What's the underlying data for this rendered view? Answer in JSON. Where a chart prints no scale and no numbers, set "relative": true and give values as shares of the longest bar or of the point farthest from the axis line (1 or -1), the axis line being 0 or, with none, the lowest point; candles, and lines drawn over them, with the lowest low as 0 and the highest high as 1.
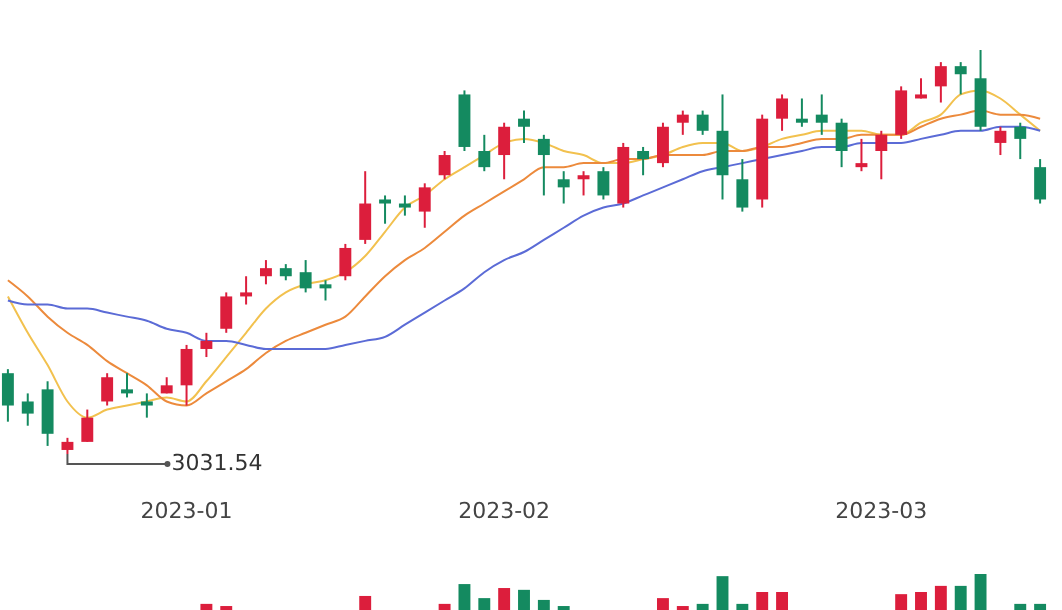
{
  "chart_data": [
    {
      "type": "candlestick",
      "relative": true,
      "categories": [
        null,
        null,
        null,
        null,
        null,
        null,
        null,
        null,
        null,
        "2023-01",
        null,
        null,
        null,
        null,
        null,
        null,
        null,
        null,
        null,
        null,
        null,
        null,
        null,
        null,
        null,
        "2023-02",
        null,
        null,
        null,
        null,
        null,
        null,
        null,
        null,
        null,
        null,
        null,
        null,
        null,
        null,
        null,
        null,
        null,
        null,
        "2023-03",
        null,
        null,
        null,
        null,
        null,
        null,
        null,
        null
      ],
      "ohlc": [
        [
          0.2,
          0.21,
          0.08,
          0.12
        ],
        [
          0.13,
          0.15,
          0.07,
          0.1
        ],
        [
          0.16,
          0.18,
          0.02,
          0.05
        ],
        [
          0.01,
          0.04,
          0,
          0.03
        ],
        [
          0.03,
          0.11,
          0.03,
          0.09
        ],
        [
          0.13,
          0.2,
          0.12,
          0.19
        ],
        [
          0.16,
          0.2,
          0.14,
          0.15
        ],
        [
          0.13,
          0.15,
          0.09,
          0.12
        ],
        [
          0.15,
          0.19,
          0.15,
          0.17
        ],
        [
          0.17,
          0.27,
          0.12,
          0.26
        ],
        [
          0.26,
          0.3,
          0.24,
          0.28
        ],
        [
          0.31,
          0.4,
          0.3,
          0.39
        ],
        [
          0.39,
          0.44,
          0.37,
          0.4
        ],
        [
          0.44,
          0.48,
          0.42,
          0.46
        ],
        [
          0.46,
          0.47,
          0.43,
          0.44
        ],
        [
          0.45,
          0.48,
          0.4,
          0.41
        ],
        [
          0.42,
          0.43,
          0.38,
          0.41
        ],
        [
          0.44,
          0.52,
          0.43,
          0.51
        ],
        [
          0.53,
          0.7,
          0.52,
          0.62
        ],
        [
          0.63,
          0.64,
          0.57,
          0.62
        ],
        [
          0.62,
          0.64,
          0.59,
          0.61
        ],
        [
          0.6,
          0.67,
          0.56,
          0.66
        ],
        [
          0.69,
          0.75,
          0.68,
          0.74
        ],
        [
          0.89,
          0.9,
          0.75,
          0.76
        ],
        [
          0.75,
          0.79,
          0.7,
          0.71
        ],
        [
          0.74,
          0.82,
          0.68,
          0.81
        ],
        [
          0.83,
          0.85,
          0.77,
          0.81
        ],
        [
          0.78,
          0.79,
          0.64,
          0.74
        ],
        [
          0.68,
          0.7,
          0.62,
          0.66
        ],
        [
          0.68,
          0.7,
          0.64,
          0.69
        ],
        [
          0.7,
          0.71,
          0.63,
          0.64
        ],
        [
          0.62,
          0.77,
          0.61,
          0.76
        ],
        [
          0.75,
          0.76,
          0.69,
          0.73
        ],
        [
          0.72,
          0.82,
          0.71,
          0.81
        ],
        [
          0.82,
          0.85,
          0.79,
          0.84
        ],
        [
          0.84,
          0.85,
          0.79,
          0.8
        ],
        [
          0.8,
          0.89,
          0.63,
          0.69
        ],
        [
          0.68,
          0.73,
          0.6,
          0.61
        ],
        [
          0.63,
          0.84,
          0.61,
          0.83
        ],
        [
          0.83,
          0.89,
          0.8,
          0.88
        ],
        [
          0.83,
          0.88,
          0.81,
          0.82
        ],
        [
          0.84,
          0.89,
          0.79,
          0.82
        ],
        [
          0.82,
          0.83,
          0.71,
          0.75
        ],
        [
          0.71,
          0.78,
          0.7,
          0.72
        ],
        [
          0.75,
          0.8,
          0.68,
          0.79
        ],
        [
          0.79,
          0.91,
          0.78,
          0.9
        ],
        [
          0.88,
          0.93,
          0.88,
          0.89
        ],
        [
          0.91,
          0.97,
          0.87,
          0.96
        ],
        [
          0.96,
          0.97,
          0.89,
          0.94
        ],
        [
          0.93,
          1,
          0.8,
          0.81
        ],
        [
          0.77,
          0.81,
          0.74,
          0.8
        ],
        [
          0.81,
          0.82,
          0.73,
          0.78
        ],
        [
          0.71,
          0.73,
          0.62,
          0.63
        ]
      ],
      "colors": [
        "#148a60",
        "#148a60",
        "#148a60",
        "#dc1e3c",
        "#dc1e3c",
        "#dc1e3c",
        "#148a60",
        "#148a60",
        "#dc1e3c",
        "#dc1e3c",
        "#dc1e3c",
        "#dc1e3c",
        "#dc1e3c",
        "#dc1e3c",
        "#148a60",
        "#148a60",
        "#148a60",
        "#dc1e3c",
        "#dc1e3c",
        "#148a60",
        "#148a60",
        "#dc1e3c",
        "#dc1e3c",
        "#148a60",
        "#148a60",
        "#dc1e3c",
        "#148a60",
        "#148a60",
        "#148a60",
        "#dc1e3c",
        "#148a60",
        "#dc1e3c",
        "#148a60",
        "#dc1e3c",
        "#dc1e3c",
        "#148a60",
        "#148a60",
        "#148a60",
        "#dc1e3c",
        "#dc1e3c",
        "#148a60",
        "#148a60",
        "#148a60",
        "#dc1e3c",
        "#dc1e3c",
        "#dc1e3c",
        "#dc1e3c",
        "#dc1e3c",
        "#148a60",
        "#148a60",
        "#dc1e3c",
        "#148a60",
        "#148a60"
      ],
      "series": [
        {
          "type": "line",
          "color": "#f2c14e",
          "values": [
            0.39,
            0.3,
            0.22,
            0.13,
            0.09,
            0.11,
            0.12,
            0.13,
            0.14,
            0.13,
            0.18,
            0.24,
            0.3,
            0.36,
            0.4,
            0.42,
            0.43,
            0.45,
            0.49,
            0.55,
            0.61,
            0.64,
            0.68,
            0.71,
            0.74,
            0.77,
            0.78,
            0.77,
            0.75,
            0.74,
            0.72,
            0.72,
            0.73,
            0.74,
            0.76,
            0.77,
            0.77,
            0.75,
            0.76,
            0.78,
            0.79,
            0.8,
            0.8,
            0.8,
            0.79,
            0.79,
            0.82,
            0.84,
            0.89,
            0.9,
            0.88,
            0.84,
            0.8
          ]
        },
        {
          "type": "line",
          "color": "#ec8a3c",
          "values": [
            0.43,
            0.39,
            0.34,
            0.3,
            0.27,
            0.23,
            0.2,
            0.17,
            0.13,
            0.12,
            0.15,
            0.18,
            0.21,
            0.25,
            0.28,
            0.3,
            0.32,
            0.34,
            0.39,
            0.44,
            0.48,
            0.51,
            0.55,
            0.59,
            0.62,
            0.65,
            0.68,
            0.71,
            0.71,
            0.72,
            0.72,
            0.73,
            0.73,
            0.74,
            0.74,
            0.74,
            0.75,
            0.75,
            0.76,
            0.76,
            0.77,
            0.78,
            0.78,
            0.79,
            0.79,
            0.79,
            0.81,
            0.83,
            0.84,
            0.85,
            0.84,
            0.84,
            0.83
          ]
        },
        {
          "type": "line",
          "color": "#5b6bd6",
          "values": [
            0.38,
            0.37,
            0.37,
            0.36,
            0.36,
            0.35,
            0.34,
            0.33,
            0.31,
            0.3,
            0.28,
            0.28,
            0.27,
            0.26,
            0.26,
            0.26,
            0.26,
            0.27,
            0.28,
            0.29,
            0.32,
            0.35,
            0.38,
            0.41,
            0.45,
            0.48,
            0.5,
            0.53,
            0.56,
            0.59,
            0.61,
            0.62,
            0.64,
            0.66,
            0.68,
            0.7,
            0.71,
            0.72,
            0.73,
            0.74,
            0.75,
            0.76,
            0.76,
            0.77,
            0.77,
            0.77,
            0.78,
            0.79,
            0.8,
            0.8,
            0.81,
            0.81,
            0.8
          ]
        }
      ],
      "annotations": [
        "3031.54"
      ]
    },
    {
      "type": "bar",
      "relative": true,
      "categories": [
        null,
        null,
        null,
        null,
        null,
        null,
        null,
        null,
        null,
        null,
        null,
        null,
        null,
        null,
        null,
        null,
        null,
        null,
        null,
        null,
        null,
        null,
        null,
        null,
        null,
        null,
        null,
        null,
        null,
        null,
        null,
        null,
        null,
        null,
        null,
        null,
        null,
        null,
        null,
        null,
        null,
        null,
        null,
        null,
        null,
        null,
        null,
        null,
        null,
        null,
        null,
        null,
        null
      ],
      "values": [
        0,
        0,
        0,
        0,
        0,
        0,
        0,
        0,
        0,
        0,
        0.17,
        0.11,
        0,
        0,
        0,
        0,
        0,
        0,
        0.39,
        0,
        0,
        0,
        0.17,
        0.72,
        0.33,
        0.61,
        0.56,
        0.28,
        0.11,
        0,
        0,
        0,
        0,
        0.33,
        0.11,
        0.17,
        0.94,
        0.17,
        0.5,
        0.5,
        0,
        0,
        0,
        0,
        0,
        0.44,
        0.5,
        0.67,
        0.67,
        1,
        0,
        0.17,
        0.17
      ],
      "colors": [
        "#148a60",
        "#148a60",
        "#148a60",
        "#dc1e3c",
        "#dc1e3c",
        "#dc1e3c",
        "#148a60",
        "#148a60",
        "#dc1e3c",
        "#dc1e3c",
        "#dc1e3c",
        "#dc1e3c",
        "#dc1e3c",
        "#dc1e3c",
        "#148a60",
        "#148a60",
        "#148a60",
        "#dc1e3c",
        "#dc1e3c",
        "#148a60",
        "#148a60",
        "#dc1e3c",
        "#dc1e3c",
        "#148a60",
        "#148a60",
        "#dc1e3c",
        "#148a60",
        "#148a60",
        "#148a60",
        "#dc1e3c",
        "#148a60",
        "#dc1e3c",
        "#148a60",
        "#dc1e3c",
        "#dc1e3c",
        "#148a60",
        "#148a60",
        "#148a60",
        "#dc1e3c",
        "#dc1e3c",
        "#148a60",
        "#148a60",
        "#148a60",
        "#dc1e3c",
        "#dc1e3c",
        "#dc1e3c",
        "#dc1e3c",
        "#dc1e3c",
        "#148a60",
        "#148a60",
        "#dc1e3c",
        "#148a60",
        "#148a60"
      ]
    }
  ]
}
